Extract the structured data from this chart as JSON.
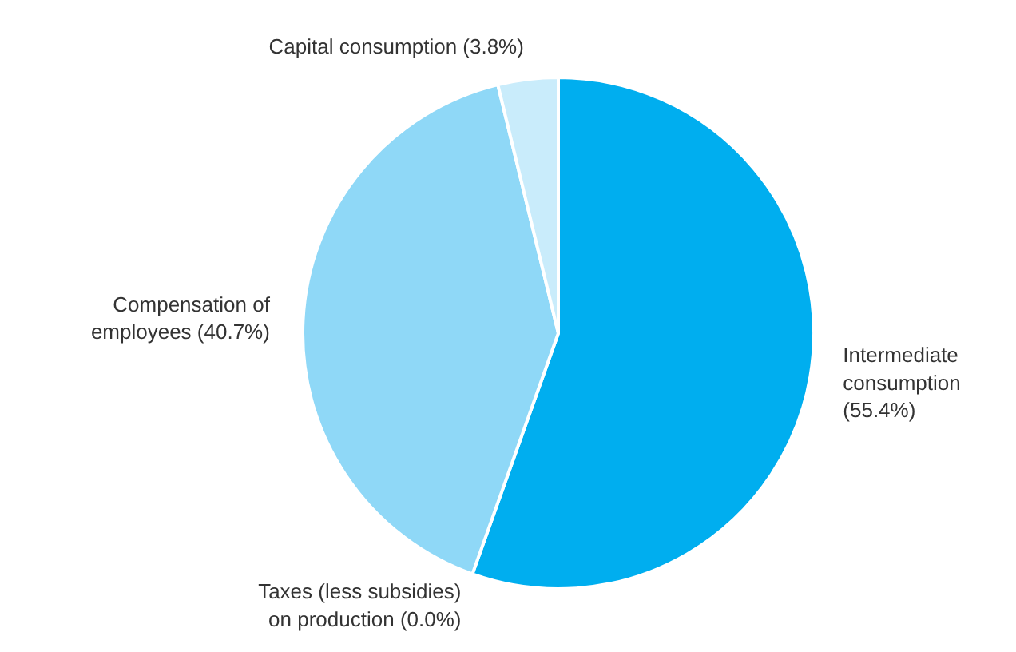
{
  "chart_data": {
    "type": "pie",
    "categories": [
      "Intermediate\nconsumption",
      "Taxes (less subsidies)\non production",
      "Compensation of\nemployees",
      "Capital consumption"
    ],
    "values": [
      55.4,
      0.0,
      40.7,
      3.8
    ],
    "value_labels": [
      "(55.4%)",
      "(0.0%)",
      "(40.7%)",
      "(3.8%)"
    ],
    "colors": [
      "#00aeef",
      "#ffffff",
      "#8fd8f7",
      "#c9ecfb"
    ]
  }
}
